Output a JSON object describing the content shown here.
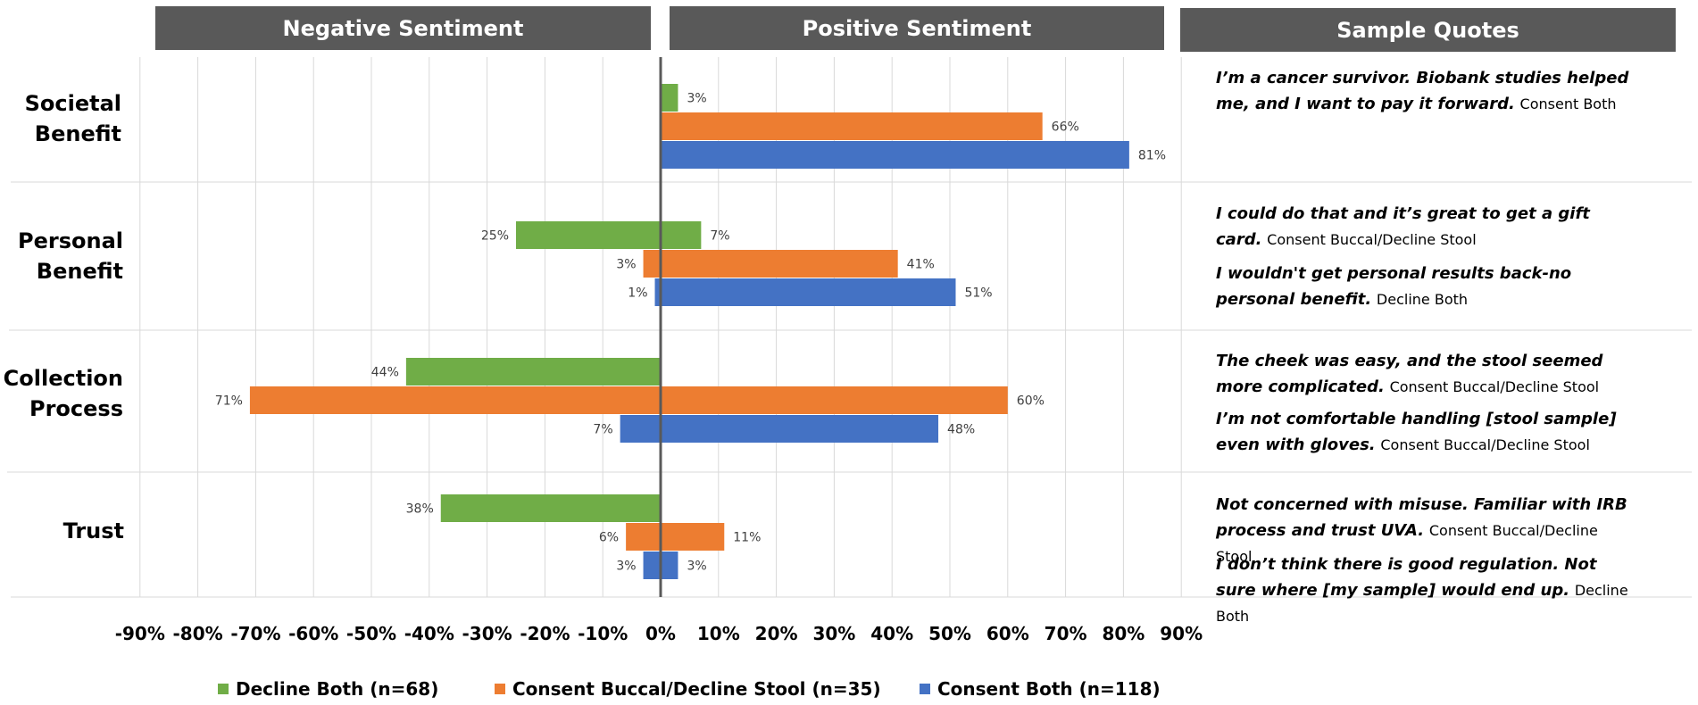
{
  "headers": {
    "negative": "Negative Sentiment",
    "positive": "Positive Sentiment",
    "quotes": "Sample Quotes"
  },
  "colors": {
    "decline_both": "#70AD47",
    "consent_buccal": "#ED7D31",
    "consent_both": "#4472C4",
    "header_bg": "#595959"
  },
  "chart_data": {
    "type": "bar",
    "orientation": "horizontal",
    "title": "",
    "xlim": [
      -90,
      90
    ],
    "x_ticks": [
      "-90%",
      "-80%",
      "-70%",
      "-60%",
      "-50%",
      "-40%",
      "-30%",
      "-20%",
      "-10%",
      "0%",
      "10%",
      "20%",
      "30%",
      "40%",
      "50%",
      "60%",
      "70%",
      "80%",
      "90%"
    ],
    "categories": [
      {
        "id": "societal",
        "line1": "Societal",
        "line2": "Benefit"
      },
      {
        "id": "personal",
        "line1": "Personal",
        "line2": "Benefit"
      },
      {
        "id": "collection",
        "line1": "Collection",
        "line2": "Process"
      },
      {
        "id": "trust",
        "line1": "Trust",
        "line2": ""
      }
    ],
    "series": [
      {
        "name": "Decline Both (n=68)",
        "key": "decline_both",
        "negative": [
          null,
          -25,
          -44,
          -38
        ],
        "negative_labels": [
          "",
          "25%",
          "44%",
          "38%"
        ],
        "positive": [
          3,
          7,
          null,
          null
        ],
        "positive_labels": [
          "3%",
          "7%",
          "",
          ""
        ]
      },
      {
        "name": "Consent Buccal/Decline Stool (n=35)",
        "key": "consent_buccal",
        "negative": [
          null,
          -3,
          -71,
          -6
        ],
        "negative_labels": [
          "",
          "3%",
          "71%",
          "6%"
        ],
        "positive": [
          66,
          41,
          60,
          11
        ],
        "positive_labels": [
          "66%",
          "41%",
          "60%",
          "11%"
        ]
      },
      {
        "name": "Consent Both (n=118)",
        "key": "consent_both",
        "negative": [
          null,
          -1,
          -7,
          -3
        ],
        "negative_labels": [
          "",
          "1%",
          "7%",
          "3%"
        ],
        "positive": [
          81,
          51,
          48,
          3
        ],
        "positive_labels": [
          "81%",
          "51%",
          "48%",
          "3%"
        ]
      }
    ],
    "legend_position": "bottom"
  },
  "quotes": [
    {
      "text": "I’m a cancer survivor. Biobank studies helped me, and I want to pay it forward.",
      "source": "Consent Both"
    },
    {
      "text": "I could do that and it’s great to get a gift card.",
      "source": "Consent Buccal/Decline Stool"
    },
    {
      "text": "I wouldn't get personal results back-no personal benefit.",
      "source": "Decline Both"
    },
    {
      "text": "The cheek was easy, and the stool seemed more complicated.",
      "source": "Consent Buccal/Decline Stool"
    },
    {
      "text": "I’m not comfortable handling [stool sample] even with gloves.",
      "source": "Consent Buccal/Decline Stool"
    },
    {
      "text": "Not concerned with misuse. Familiar with IRB process and trust UVA.",
      "source": "Consent Buccal/Decline Stool"
    },
    {
      "text": "I don’t think there is good regulation. Not sure where [my sample] would end up.",
      "source": "Decline Both"
    }
  ]
}
